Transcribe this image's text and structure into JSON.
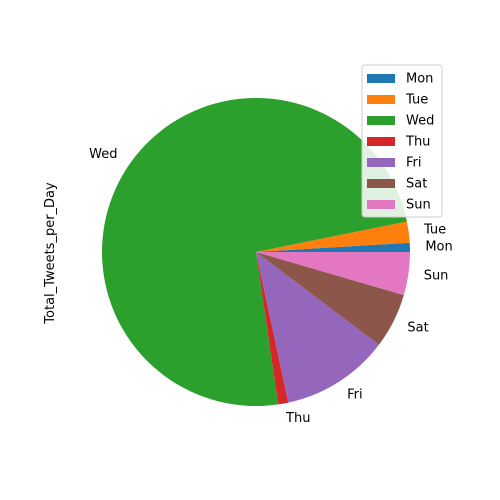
{
  "chart_data": {
    "type": "pie",
    "title": "",
    "ylabel": "Total_Tweets_per_Day",
    "categories": [
      "Mon",
      "Tue",
      "Wed",
      "Thu",
      "Fri",
      "Sat",
      "Sun"
    ],
    "values": [
      1.0,
      2.3,
      77.1,
      1.1,
      11.8,
      6.0,
      4.7
    ],
    "colors": [
      "#1f77b4",
      "#ff7f0e",
      "#2ca02c",
      "#d62728",
      "#9467bd",
      "#8c564b",
      "#e377c2"
    ],
    "start_angle": 0,
    "direction": "counterclockwise",
    "legend": {
      "position": "top-right",
      "entries": [
        "Mon",
        "Tue",
        "Wed",
        "Thu",
        "Fri",
        "Sat",
        "Sun"
      ]
    }
  }
}
